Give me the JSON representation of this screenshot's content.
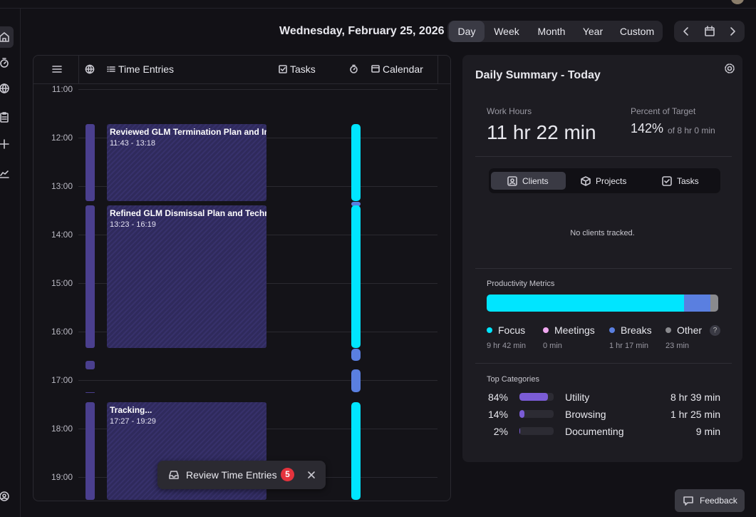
{
  "header": {
    "date": "Wednesday, February 25, 2026",
    "tabs": [
      "Day",
      "Week",
      "Month",
      "Year",
      "Custom"
    ]
  },
  "timeline": {
    "columns": [
      "Time Entries",
      "Tasks",
      "Calendar"
    ],
    "hours": [
      "11:00",
      "12:00",
      "13:00",
      "14:00",
      "15:00",
      "16:00",
      "17:00",
      "18:00",
      "19:00"
    ],
    "entries": [
      {
        "title": "Reviewed GLM Termination Plan and Impl",
        "range": "11:43 - 13:18"
      },
      {
        "title": "Refined GLM Dismissal Plan and Technica",
        "range": "13:23 - 16:19"
      },
      {
        "title": "Tracking...",
        "range": "17:27 - 19:29"
      }
    ]
  },
  "toast": {
    "text": "Review Time Entries",
    "count": "5"
  },
  "summary": {
    "title": "Daily Summary - Today",
    "work_hours": {
      "label": "Work Hours",
      "value": "11 hr 22 min"
    },
    "target": {
      "label": "Percent of Target",
      "value": "142%",
      "of": "of 8 hr 0 min"
    },
    "tabs": [
      "Clients",
      "Projects",
      "Tasks"
    ],
    "empty": "No clients tracked.",
    "productivity": {
      "title": "Productivity Metrics",
      "items": [
        {
          "name": "Focus",
          "color": "#00e5ff",
          "time": {
            "value": 582,
            "label": "9 hr 42 min"
          }
        },
        {
          "name": "Meetings",
          "color": "#f0a8f0",
          "time": {
            "value": 0,
            "label": "0 min"
          }
        },
        {
          "name": "Breaks",
          "color": "#5a7fe0",
          "time": {
            "value": 77,
            "label": "1 hr 17 min"
          }
        },
        {
          "name": "Other",
          "color": "#8a8a8e",
          "time": {
            "value": 23,
            "label": "23 min"
          }
        }
      ]
    },
    "categories": {
      "title": "Top Categories",
      "items": [
        {
          "share": {
            "value": 84,
            "label": "84%"
          },
          "name": "Utility",
          "time": "8 hr 39 min"
        },
        {
          "share": {
            "value": 14,
            "label": "14%"
          },
          "name": "Browsing",
          "time": "1 hr 25 min"
        },
        {
          "share": {
            "value": 2,
            "label": "2%"
          },
          "name": "Documenting",
          "time": "9 min"
        }
      ]
    }
  },
  "feedback": "Feedback"
}
